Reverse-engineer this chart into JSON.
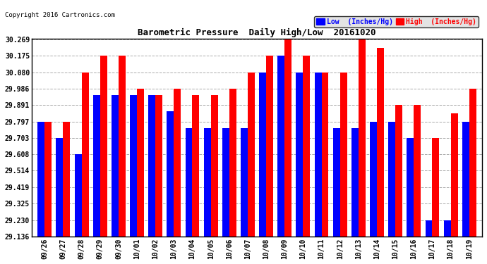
{
  "title": "Barometric Pressure  Daily High/Low  20161020",
  "copyright": "Copyright 2016 Cartronics.com",
  "legend_low": "Low  (Inches/Hg)",
  "legend_high": "High  (Inches/Hg)",
  "dates": [
    "09/26",
    "09/27",
    "09/28",
    "09/29",
    "09/30",
    "10/01",
    "10/02",
    "10/03",
    "10/04",
    "10/05",
    "10/06",
    "10/07",
    "10/08",
    "10/09",
    "10/10",
    "10/11",
    "10/12",
    "10/13",
    "10/14",
    "10/15",
    "10/16",
    "10/17",
    "10/18",
    "10/19"
  ],
  "low": [
    29.797,
    29.703,
    29.608,
    29.95,
    29.95,
    29.95,
    29.95,
    29.855,
    29.76,
    29.76,
    29.76,
    29.76,
    30.08,
    30.175,
    30.08,
    30.08,
    29.76,
    29.76,
    29.797,
    29.797,
    29.703,
    29.23,
    29.23,
    29.797
  ],
  "high": [
    29.797,
    29.797,
    30.08,
    30.175,
    30.175,
    29.986,
    29.95,
    29.986,
    29.95,
    29.95,
    29.986,
    30.08,
    30.175,
    30.269,
    30.175,
    30.08,
    30.08,
    30.269,
    30.22,
    29.891,
    29.891,
    29.703,
    29.845,
    29.986
  ],
  "ymin": 29.136,
  "ymax": 30.269,
  "yticks": [
    29.136,
    29.23,
    29.325,
    29.419,
    29.514,
    29.608,
    29.703,
    29.797,
    29.891,
    29.986,
    30.08,
    30.175,
    30.269
  ],
  "bar_color_low": "#0000ff",
  "bar_color_high": "#ff0000",
  "bg_color": "#ffffff",
  "plot_bg_color": "#ffffff",
  "grid_color": "#aaaaaa",
  "title_color": "#000000",
  "copyright_color": "#000000",
  "legend_low_bg": "#0000ff",
  "legend_high_bg": "#ff0000"
}
